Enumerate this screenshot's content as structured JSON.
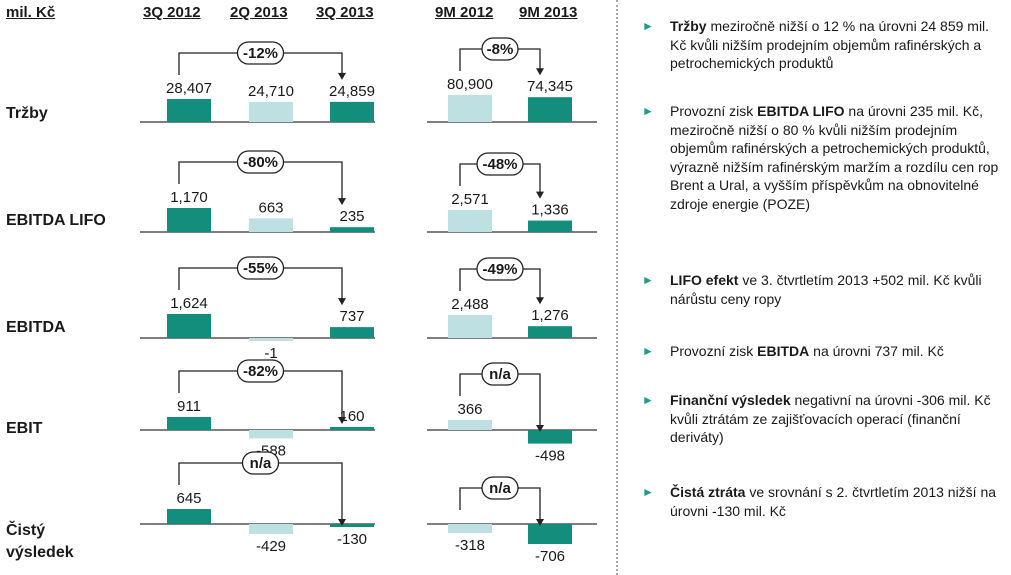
{
  "header": {
    "unit": "mil. Kč",
    "q1": "3Q 2012",
    "q2": "2Q 2013",
    "q3": "3Q 2013",
    "n1": "9M 2012",
    "n2": "9M 2013"
  },
  "colors": {
    "dark": "#138e7c",
    "light": "#bfe0e3",
    "axis": "#333333",
    "arrow": "#1c9c8c"
  },
  "rows": [
    {
      "label": "Tržby",
      "label2": "",
      "quarter_change": "-12%",
      "nine_change": "-8%"
    },
    {
      "label": "EBITDA LIFO",
      "label2": "",
      "quarter_change": "-80%",
      "nine_change": "-48%"
    },
    {
      "label": "EBITDA",
      "label2": "",
      "quarter_change": "-55%",
      "nine_change": "-49%"
    },
    {
      "label": "EBIT",
      "label2": "",
      "quarter_change": "-82%",
      "nine_change": "n/a"
    },
    {
      "label": "Čistý",
      "label2": "výsledek",
      "quarter_change": "n/a",
      "nine_change": "n/a"
    }
  ],
  "chart_data": [
    {
      "type": "bar",
      "title": "Tržby",
      "categories": [
        "3Q 2012",
        "2Q 2013",
        "3Q 2013"
      ],
      "values": [
        28407,
        24710,
        24859
      ]
    },
    {
      "type": "bar",
      "title": "Tržby",
      "categories": [
        "9M 2012",
        "9M 2013"
      ],
      "values": [
        80900,
        74345
      ]
    },
    {
      "type": "bar",
      "title": "EBITDA LIFO",
      "categories": [
        "3Q 2012",
        "2Q 2013",
        "3Q 2013"
      ],
      "values": [
        1170,
        663,
        235
      ]
    },
    {
      "type": "bar",
      "title": "EBITDA LIFO",
      "categories": [
        "9M 2012",
        "9M 2013"
      ],
      "values": [
        2571,
        1336
      ]
    },
    {
      "type": "bar",
      "title": "EBITDA",
      "categories": [
        "3Q 2012",
        "2Q 2013",
        "3Q 2013"
      ],
      "values": [
        1624,
        -1,
        737
      ]
    },
    {
      "type": "bar",
      "title": "EBITDA",
      "categories": [
        "9M 2012",
        "9M 2013"
      ],
      "values": [
        2488,
        1276
      ]
    },
    {
      "type": "bar",
      "title": "EBIT",
      "categories": [
        "3Q 2012",
        "2Q 2013",
        "3Q 2013"
      ],
      "values": [
        911,
        -588,
        160
      ]
    },
    {
      "type": "bar",
      "title": "EBIT",
      "categories": [
        "9M 2012",
        "9M 2013"
      ],
      "values": [
        366,
        -498
      ]
    },
    {
      "type": "bar",
      "title": "Čistý výsledek",
      "categories": [
        "3Q 2012",
        "2Q 2013",
        "3Q 2013"
      ],
      "values": [
        645,
        -429,
        -130
      ]
    },
    {
      "type": "bar",
      "title": "Čistý výsledek",
      "categories": [
        "9M 2012",
        "9M 2013"
      ],
      "values": [
        -318,
        -706
      ]
    }
  ],
  "value_labels": [
    [
      "28,407",
      "24,710",
      "24,859"
    ],
    [
      "80,900",
      "74,345"
    ],
    [
      "1,170",
      "663",
      "235"
    ],
    [
      "2,571",
      "1,336"
    ],
    [
      "1,624",
      "-1",
      "737"
    ],
    [
      "2,488",
      "1,276"
    ],
    [
      "911",
      "-588",
      "160"
    ],
    [
      "366",
      "-498"
    ],
    [
      "645",
      "-429",
      "-130"
    ],
    [
      "-318",
      "-706"
    ]
  ],
  "bullets": [
    {
      "bold": "Tržby",
      "text": " meziročně nižší o 12 % na úrovni 24 859 mil. Kč kvůli nižším prodejním objemům rafinérských a petrochemických produktů"
    },
    {
      "pre": "Provozní zisk ",
      "bold": "EBITDA LIFO",
      "text": " na úrovni 235 mil. Kč, meziročně nižší o 80 % kvůli nižším prodejním objemům rafinérských a petrochemických produktů, výrazně nižším rafinérským maržím a rozdílu cen rop Brent a Ural, a vyšším příspěvkům na obnovitelné zdroje energie (POZE)"
    },
    {
      "bold": "LIFO efekt",
      "text": " ve 3. čtvrtletím 2013 +502 mil. Kč kvůli nárůstu ceny ropy"
    },
    {
      "pre": "Provozní zisk ",
      "bold": "EBITDA",
      "text": " na úrovni 737 mil. Kč"
    },
    {
      "bold": "Finanční výsledek",
      "text": " negativní na úrovni -306 mil. Kč kvůli ztrátám ze zajišťovacích operací (finanční deriváty)"
    },
    {
      "bold": "Čistá ztráta",
      "text": " ve srovnání s 2. čtvrtletím 2013 nižší na úrovni -130 mil. Kč"
    }
  ]
}
